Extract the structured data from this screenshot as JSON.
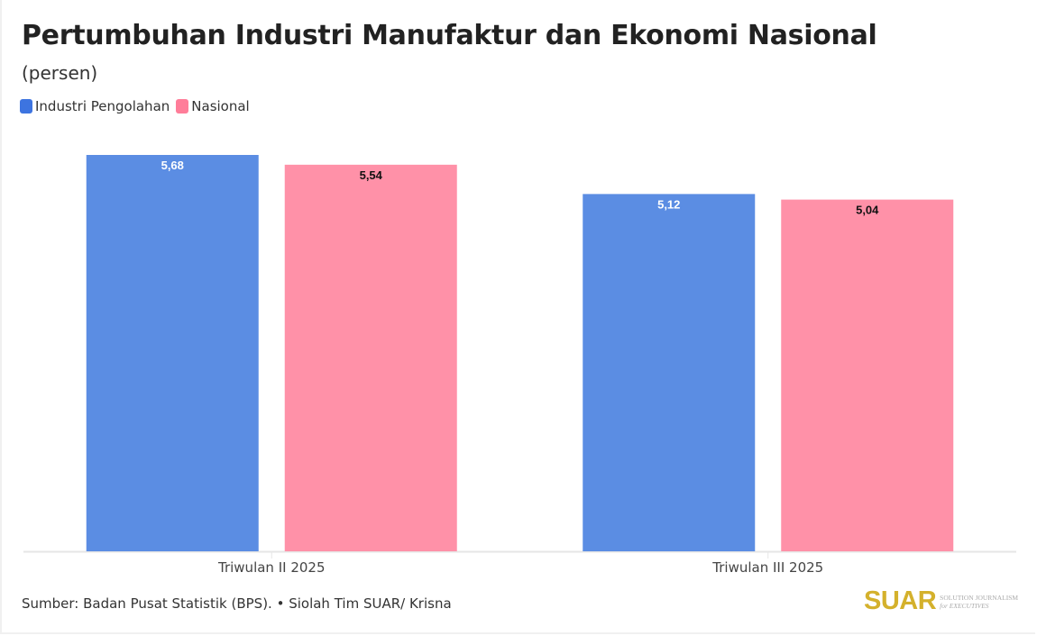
{
  "header": {
    "title": "Pertumbuhan Industri Manufaktur dan Ekonomi Nasional",
    "subtitle": "(persen)"
  },
  "legend": [
    {
      "label": "Industri Pengolahan",
      "color": "#5b8de3"
    },
    {
      "label": "Nasional",
      "color": "#ff91a8"
    }
  ],
  "footer": {
    "source": "Sumber: Badan Pusat Statistik (BPS). • Siolah Tim SUAR/ Krisna"
  },
  "logo": {
    "mark": "SUAR",
    "tagline_1": "SOLUTION JOURNALISM",
    "tagline_2": "for EXECUTIVES"
  },
  "chart_data": {
    "type": "bar",
    "title": "Pertumbuhan Industri Manufaktur dan Ekonomi Nasional",
    "subtitle": "(persen)",
    "xlabel": "",
    "ylabel": "persen",
    "categories": [
      "Triwulan II 2025",
      "Triwulan III 2025"
    ],
    "series": [
      {
        "name": "Industri Pengolahan",
        "color": "#5b8de3",
        "label_color": "#ffffff",
        "values": [
          5.68,
          5.12
        ],
        "labels": [
          "5,68",
          "5,12"
        ]
      },
      {
        "name": "Nasional",
        "color": "#ff91a8",
        "label_color": "#111111",
        "values": [
          5.54,
          5.04
        ],
        "labels": [
          "5,54",
          "5,04"
        ]
      }
    ],
    "ylim": [
      0,
      5.68
    ],
    "grid": false,
    "legend_position": "top-left",
    "data_labels": true
  }
}
